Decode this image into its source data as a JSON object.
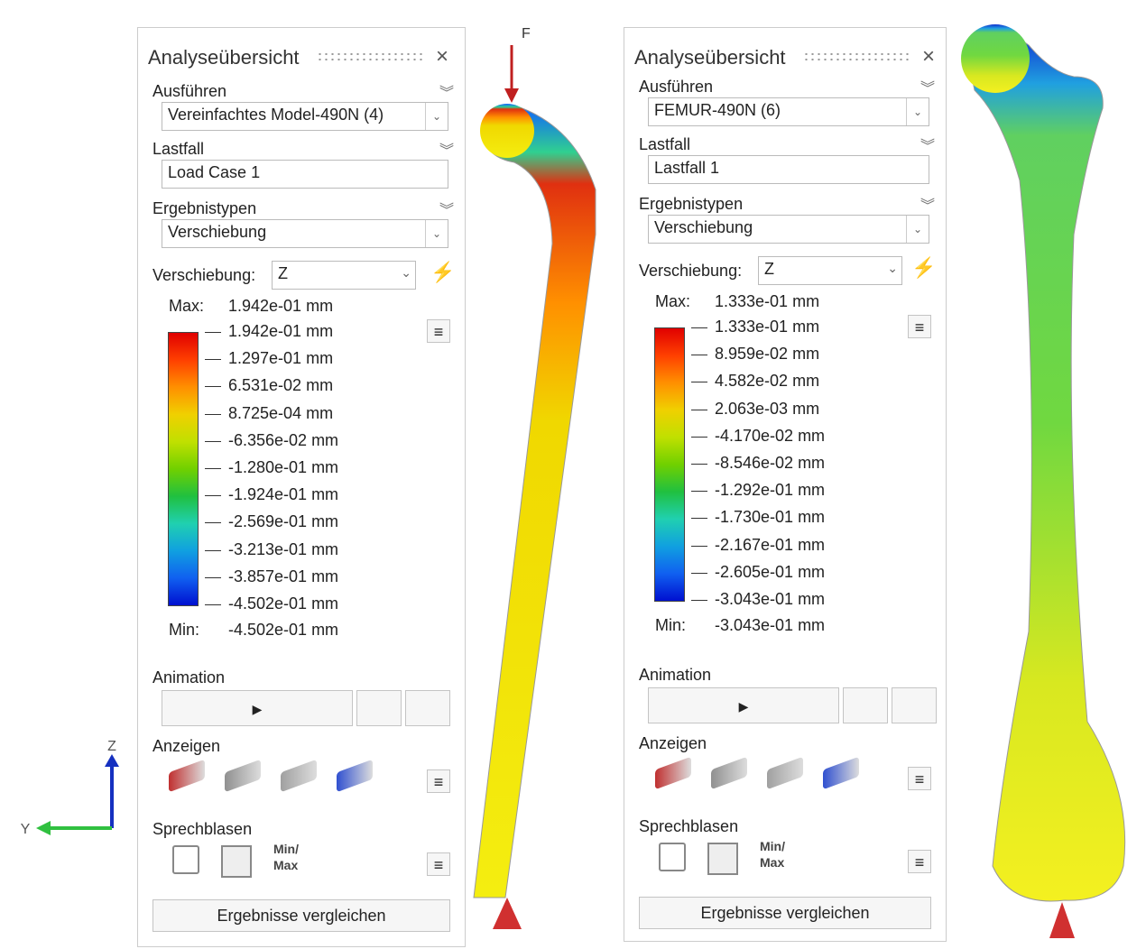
{
  "axis_labels": {
    "z": "Z",
    "y": "Y"
  },
  "force_label": "F",
  "panels": [
    {
      "title": "Analyseübersicht",
      "run_label": "Ausführen",
      "run_value": "Vereinfachtes Model-490N (4)",
      "loadcase_label": "Lastfall",
      "loadcase_value": "Load Case 1",
      "result_types_label": "Ergebnistypen",
      "result_type_value": "Verschiebung",
      "component_label": "Verschiebung:",
      "component_value": "Z",
      "max_label": "Max:",
      "max_value": "1.942e-01 mm",
      "legend": [
        "1.942e-01 mm",
        "1.297e-01 mm",
        "6.531e-02 mm",
        "8.725e-04 mm",
        "-6.356e-02 mm",
        "-1.280e-01 mm",
        "-1.924e-01 mm",
        "-2.569e-01 mm",
        "-3.213e-01 mm",
        "-3.857e-01 mm",
        "-4.502e-01 mm"
      ],
      "min_label": "Min:",
      "min_value": "-4.502e-01 mm",
      "animation_label": "Animation",
      "display_label": "Anzeigen",
      "callouts_label": "Sprechblasen",
      "minmax_label": [
        "Min/",
        "Max"
      ],
      "compare_button": "Ergebnisse vergleichen"
    },
    {
      "title": "Analyseübersicht",
      "run_label": "Ausführen",
      "run_value": "FEMUR-490N (6)",
      "loadcase_label": "Lastfall",
      "loadcase_value": "Lastfall 1",
      "result_types_label": "Ergebnistypen",
      "result_type_value": "Verschiebung",
      "component_label": "Verschiebung:",
      "component_value": "Z",
      "max_label": "Max:",
      "max_value": "1.333e-01 mm",
      "legend": [
        "1.333e-01 mm",
        "8.959e-02 mm",
        "4.582e-02 mm",
        "2.063e-03 mm",
        "-4.170e-02 mm",
        "-8.546e-02 mm",
        "-1.292e-01 mm",
        "-1.730e-01 mm",
        "-2.167e-01 mm",
        "-2.605e-01 mm",
        "-3.043e-01 mm"
      ],
      "min_label": "Min:",
      "min_value": "-3.043e-01 mm",
      "animation_label": "Animation",
      "display_label": "Anzeigen",
      "callouts_label": "Sprechblasen",
      "minmax_label": [
        "Min/",
        "Max"
      ],
      "compare_button": "Ergebnisse vergleichen"
    }
  ]
}
